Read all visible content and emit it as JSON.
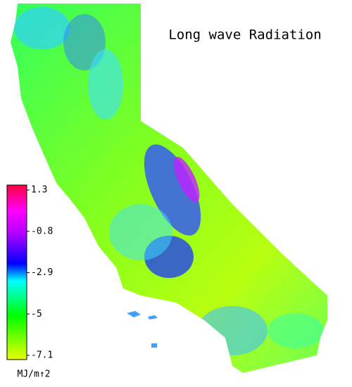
{
  "map": {
    "title": "Long wave Radiation",
    "colorbar": {
      "label": "MJ/m↑2",
      "clim": [
        -7.1,
        1.3
      ],
      "ticks": [
        1.3,
        -0.8,
        -2.9,
        -5.0,
        -7.1
      ]
    }
  }
}
